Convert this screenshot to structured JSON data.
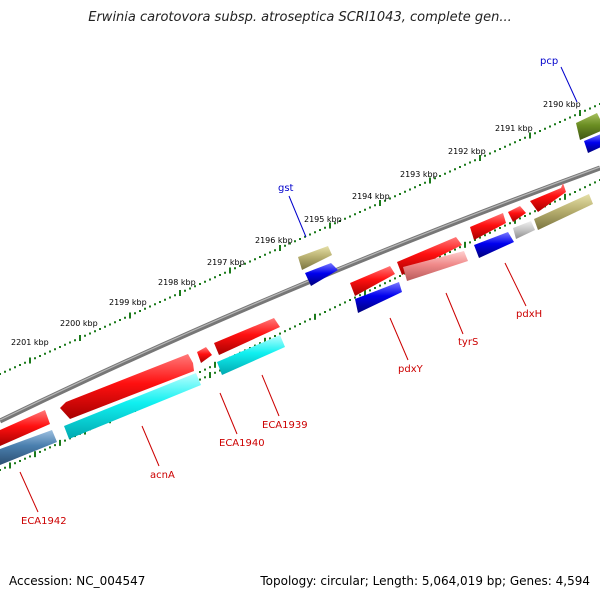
{
  "title": "Erwinia carotovora subsp. atroseptica SCRI1043, complete gen...",
  "footer": {
    "accession": "Accession: NC_004547",
    "topology": "Topology: circular; Length: 5,064,019 bp; Genes: 4,594"
  },
  "colors": {
    "backbone": "#7f7f7f",
    "tick_dots": "#1b7a1b",
    "label_red": "#cc0000",
    "label_blue": "#0000cc"
  },
  "scale_labels": [
    "2190 kbp",
    "2191 kbp",
    "2192 kbp",
    "2193 kbp",
    "2194 kbp",
    "2195 kbp",
    "2196 kbp",
    "2197 kbp",
    "2198 kbp",
    "2199 kbp",
    "2200 kbp",
    "2201 kbp"
  ],
  "gene_labels": [
    "pcp",
    "gst",
    "pdxH",
    "tyrS",
    "pdxY",
    "ECA1939",
    "ECA1940",
    "acnA",
    "ECA1942"
  ]
}
